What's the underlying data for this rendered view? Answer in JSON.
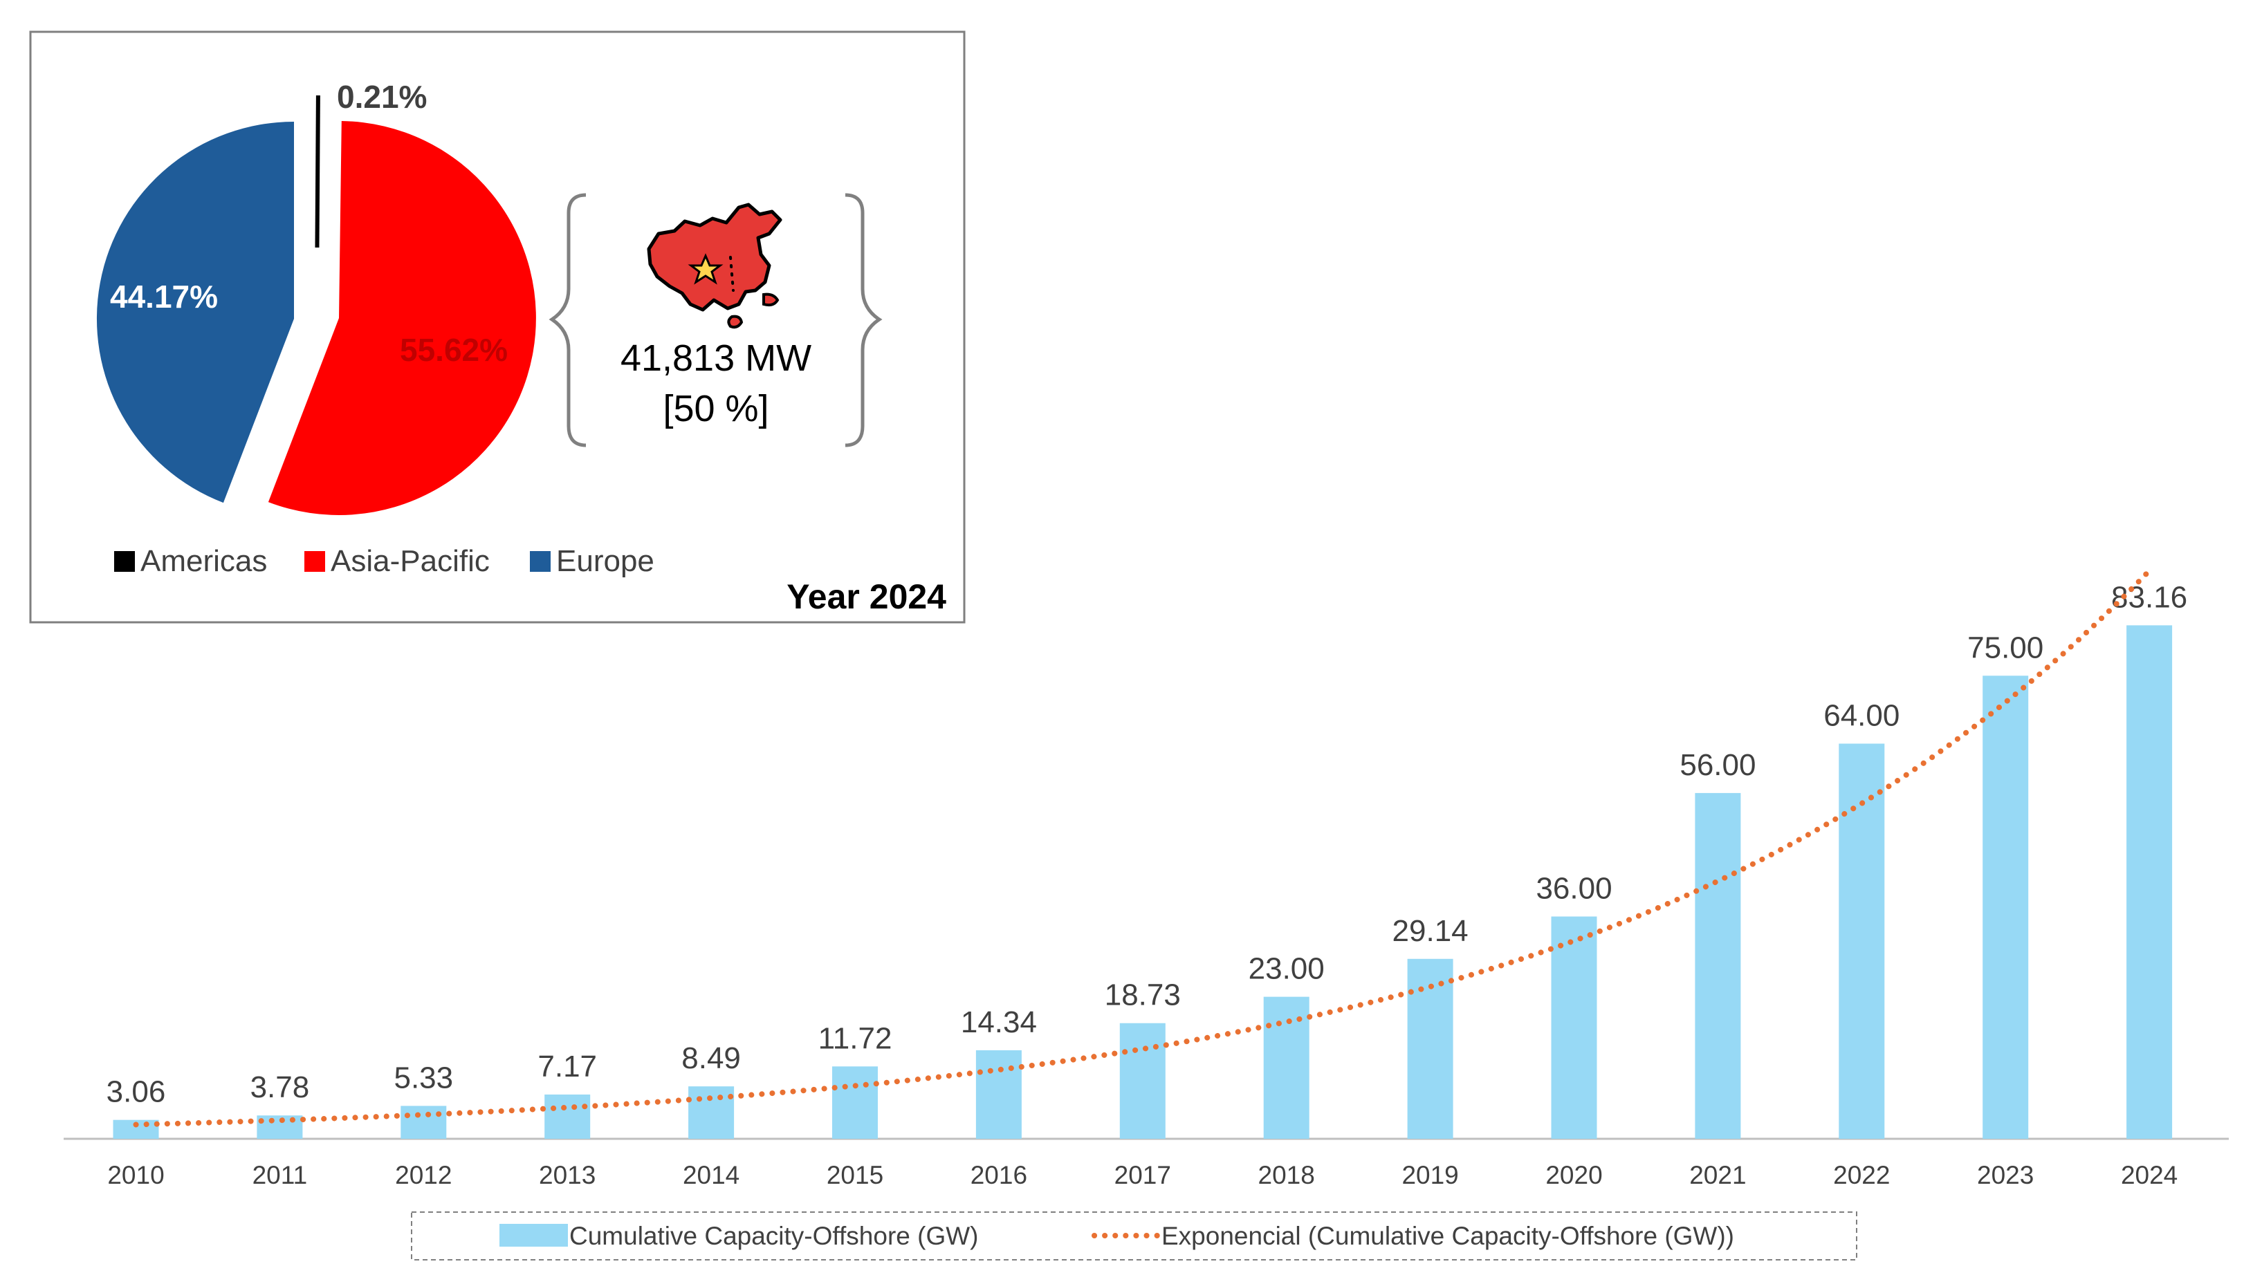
{
  "chart_data": [
    {
      "type": "bar",
      "title": "",
      "xlabel": "",
      "ylabel": "",
      "ylim": [
        0,
        90
      ],
      "categories": [
        "2010",
        "2011",
        "2012",
        "2013",
        "2014",
        "2015",
        "2016",
        "2017",
        "2018",
        "2019",
        "2020",
        "2021",
        "2022",
        "2023",
        "2024"
      ],
      "series": [
        {
          "name": "Cumulative Capacity-Offshore (GW)",
          "values": [
            3.06,
            3.78,
            5.33,
            7.17,
            8.49,
            11.72,
            14.34,
            18.73,
            23.0,
            29.14,
            36.0,
            56.0,
            64.0,
            75.0,
            83.16
          ],
          "labels": [
            "3.06",
            "3.78",
            "5.33",
            "7.17",
            "8.49",
            "11.72",
            "14.34",
            "18.73",
            "23.00",
            "29.14",
            "36.00",
            "56.00",
            "64.00",
            "75.00",
            "83.16"
          ],
          "color": "#97D9F5"
        }
      ],
      "trendline": {
        "name": "Exponencial (Cumulative Capacity-Offshore (GW))",
        "type": "exponential",
        "start_value": 2.3,
        "end_value": 92,
        "color": "#E97132"
      },
      "legend": {
        "position": "bottom",
        "bar_label": "Cumulative Capacity-Offshore (GW)",
        "trend_label": "Exponencial (Cumulative Capacity-Offshore (GW))"
      },
      "grid": false
    },
    {
      "type": "pie",
      "title": "Year 2024",
      "categories": [
        "Americas",
        "Asia-Pacific",
        "Europe"
      ],
      "values": [
        0.21,
        55.62,
        44.17
      ],
      "labels": [
        "0.21%",
        "55.62%",
        "44.17%"
      ],
      "colors": [
        "#000000",
        "#FF0000",
        "#1F5C99"
      ],
      "legend": [
        "Americas",
        "Asia-Pacific",
        "Europe"
      ],
      "callout": {
        "icon": "china-map-icon",
        "value_text": "41,813 MW",
        "share_text": "[50 %]"
      }
    }
  ]
}
